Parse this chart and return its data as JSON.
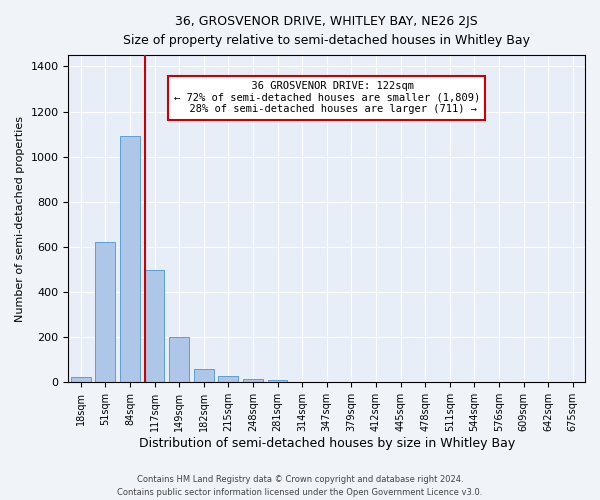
{
  "title1": "36, GROSVENOR DRIVE, WHITLEY BAY, NE26 2JS",
  "title2": "Size of property relative to semi-detached houses in Whitley Bay",
  "xlabel": "Distribution of semi-detached houses by size in Whitley Bay",
  "ylabel": "Number of semi-detached properties",
  "footnote1": "Contains HM Land Registry data © Crown copyright and database right 2024.",
  "footnote2": "Contains public sector information licensed under the Open Government Licence v3.0.",
  "property_size": 122,
  "property_label": "36 GROSVENOR DRIVE: 122sqm",
  "pct_smaller": 72,
  "n_smaller": 1809,
  "pct_larger": 28,
  "n_larger": 711,
  "bin_labels": [
    "18sqm",
    "51sqm",
    "84sqm",
    "117sqm",
    "149sqm",
    "182sqm",
    "215sqm",
    "248sqm",
    "281sqm",
    "314sqm",
    "347sqm",
    "379sqm",
    "412sqm",
    "445sqm",
    "478sqm",
    "511sqm",
    "544sqm",
    "576sqm",
    "609sqm",
    "642sqm",
    "675sqm"
  ],
  "bar_heights": [
    25,
    620,
    1090,
    500,
    200,
    60,
    30,
    15,
    10,
    0,
    0,
    0,
    0,
    0,
    0,
    0,
    0,
    0,
    0,
    0,
    0
  ],
  "bar_color": "#aec6e8",
  "bar_edge_color": "#5a9fd4",
  "vline_x_index": 3,
  "vline_color": "#cc0000",
  "annotation_box_color": "#cc0000",
  "ylim": [
    0,
    1450
  ],
  "background_color": "#e8eef8",
  "grid_color": "#ffffff"
}
